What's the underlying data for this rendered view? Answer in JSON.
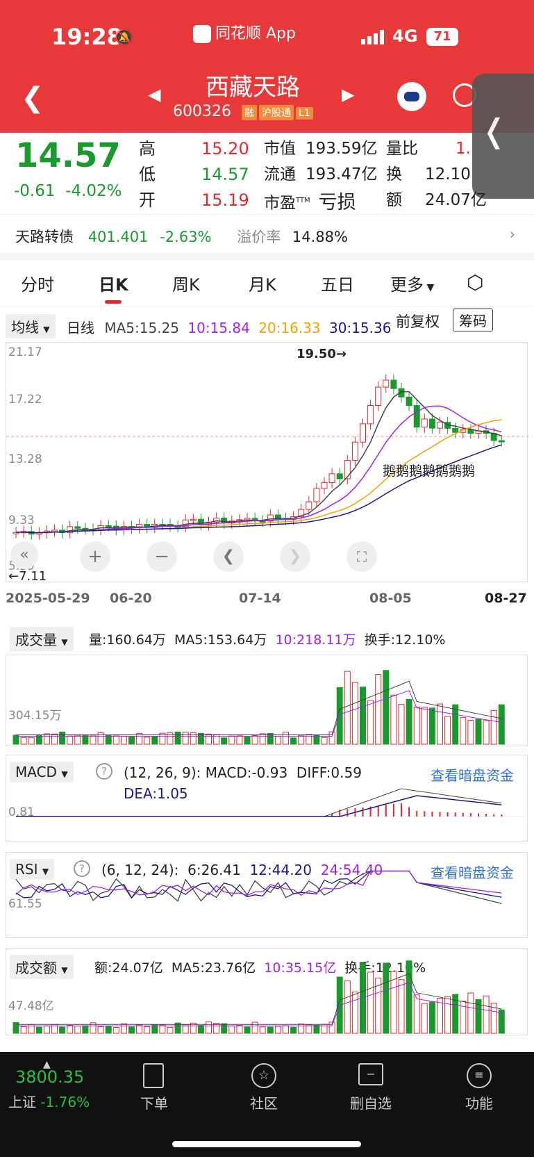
{
  "status": {
    "time": "19:28",
    "app": "同花顺 App",
    "network": "4G",
    "battery": "71"
  },
  "stock": {
    "name": "西藏天路",
    "code": "600326",
    "tags": [
      "融",
      "沪股通",
      "L1"
    ],
    "price": "14.57",
    "change": "-0.61",
    "change_pct": "-4.02%"
  },
  "quote": [
    {
      "label": "高",
      "value": "15.20",
      "color": "#e5272d"
    },
    {
      "label": "低",
      "value": "14.57",
      "color": "#1a9a2e"
    },
    {
      "label": "开",
      "value": "15.19",
      "color": "#e5272d"
    }
  ],
  "quote2": [
    {
      "label": "市值",
      "value": "193.59亿"
    },
    {
      "label": "流通",
      "value": "193.47亿"
    },
    {
      "label": "市盈",
      "sup": "TTM",
      "value": "亏损"
    }
  ],
  "quote3": [
    {
      "label": "量比",
      "value": "1."
    },
    {
      "label": "换",
      "value": "12.10"
    },
    {
      "label": "额",
      "value": "24.07亿"
    }
  ],
  "bond": {
    "name": "天路转债",
    "price": "401.401",
    "pct": "-2.63%",
    "premium_label": "溢价率",
    "premium": "14.88%"
  },
  "tabs": [
    "分时",
    "日K",
    "周K",
    "月K",
    "五日",
    "更多"
  ],
  "active_tab": "日K",
  "ma": {
    "dropdown": "均线",
    "period": "日线",
    "ma5": "MA5:15.25",
    "ma10": "10:15.84",
    "ma20": "20:16.33",
    "ma30": "30:15.36",
    "adjust": "前复权",
    "chip": "筹码"
  },
  "kline": {
    "y_top": "21.17",
    "y_mid1": "17.22",
    "y_mid2": "13.28",
    "y_low": "9.33",
    "y_bot": "5.39",
    "high_mark": "19.50→",
    "low_mark": "←7.11",
    "annotation": "鹅鹅鹅鹅鹅鹅鹅",
    "dates": [
      "2025-05-29",
      "06-20",
      "07-14",
      "08-05",
      "08-27"
    ]
  },
  "volume": {
    "dropdown": "成交量",
    "vol": "量:160.64万",
    "ma5": "MA5:153.64万",
    "ma10": "10:218.11万",
    "turnover": "换手:12.10%",
    "ymax": "304.15万"
  },
  "macd": {
    "dropdown": "MACD",
    "params": "(12, 26, 9):",
    "macd": "MACD:-0.93",
    "diff": "DIFF:0.59",
    "dea": "DEA:1.05",
    "link": "查看暗盘资金",
    "ymax": "0.81"
  },
  "rsi": {
    "dropdown": "RSI",
    "params": "(6, 12, 24):",
    "r6": "6:26.41",
    "r12": "12:44.20",
    "r24": "24:54.40",
    "link": "查看暗盘资金",
    "ylabel": "61.55"
  },
  "amount": {
    "dropdown": "成交额",
    "amt": "额:24.07亿",
    "ma5": "MA5:23.76亿",
    "ma10": "10:35.15亿",
    "turnover": "换手:12.10%",
    "ymax": "47.48亿"
  },
  "index": {
    "value": "3800.35",
    "name": "上证",
    "pct": "-1.76%"
  },
  "nav": [
    "下单",
    "社区",
    "删自选",
    "功能"
  ],
  "colors": {
    "header": "#e8393a",
    "up": "#e5272d",
    "down": "#1a9a2e",
    "ma5": "#444444",
    "ma10": "#a020f0",
    "ma20": "#f5a000",
    "ma30": "#1a1a8c"
  }
}
